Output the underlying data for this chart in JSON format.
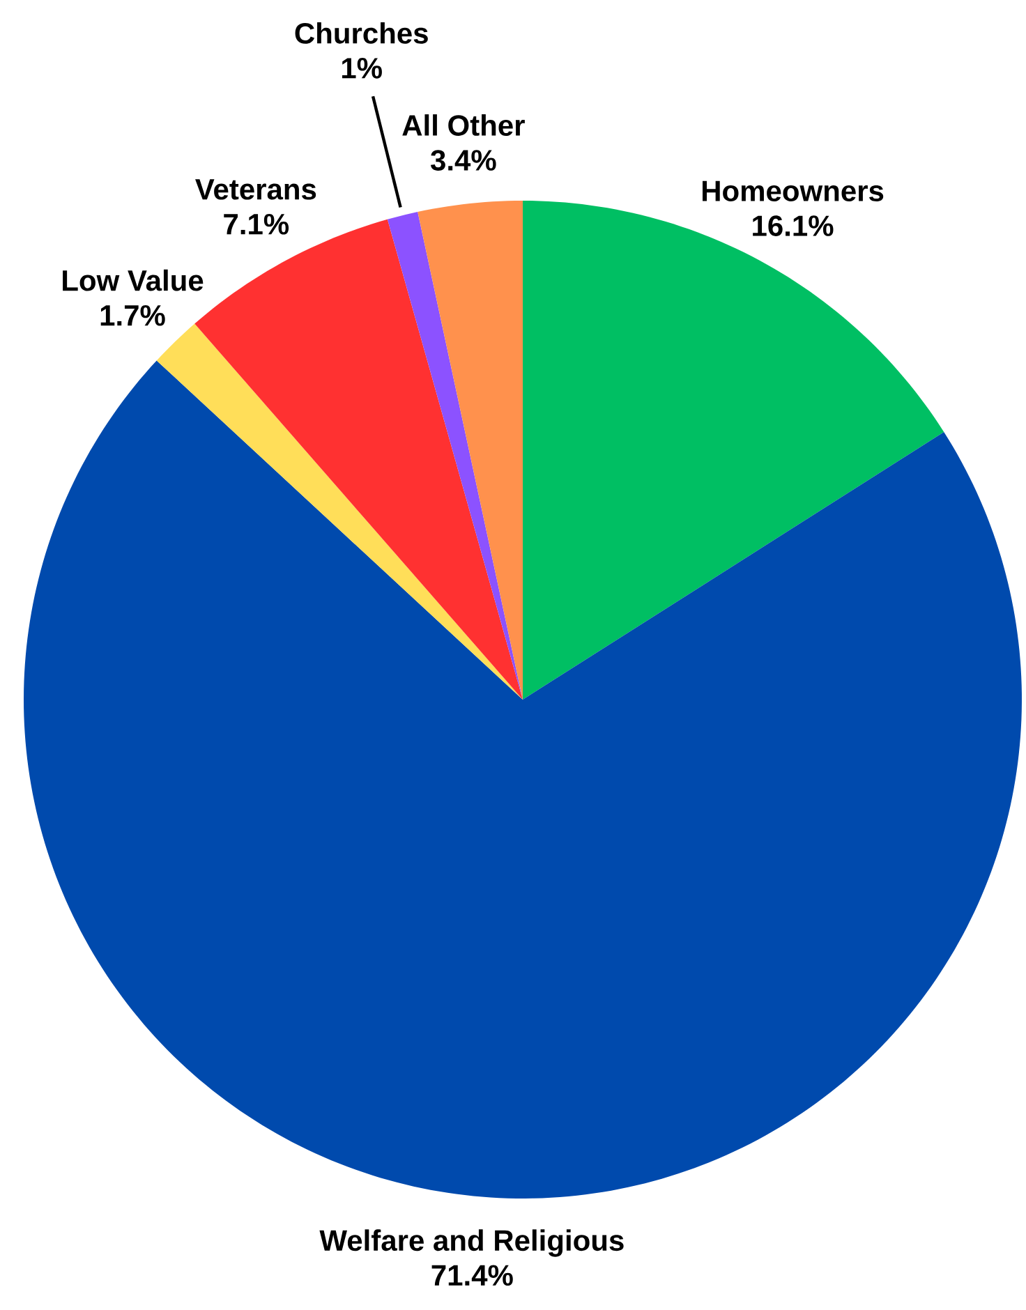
{
  "chart_data": {
    "type": "pie",
    "categories": [
      "Homeowners",
      "Welfare and Religious",
      "Low Value",
      "Veterans",
      "Churches",
      "All Other"
    ],
    "values": [
      16.1,
      71.4,
      1.7,
      7.1,
      1,
      3.4
    ],
    "value_labels": [
      "16.1%",
      "71.4%",
      "1.7%",
      "7.1%",
      "1%",
      "3.4%"
    ],
    "colors": [
      "#00bf63",
      "#004aad",
      "#ffde59",
      "#ff3131",
      "#8c52ff",
      "#ff914d"
    ]
  }
}
